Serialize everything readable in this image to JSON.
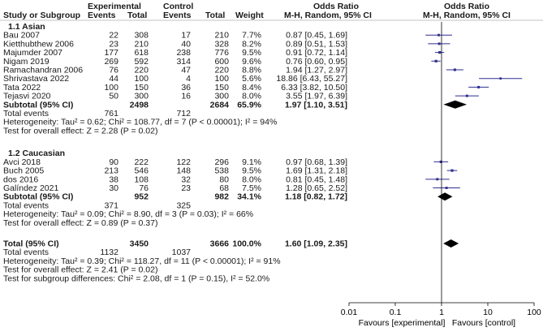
{
  "colors": {
    "text": "#1a1a1a",
    "study_marker": "#2e2f8f",
    "study_line": "#2e2f8f",
    "diamond": "#000000",
    "axis": "#000000",
    "line_of_no_effect": "#000000"
  },
  "header": {
    "study_col": "Study or Subgroup",
    "group1": "Experimental",
    "group2": "Control",
    "events": "Events",
    "total": "Total",
    "weight": "Weight",
    "or_title": "Odds Ratio",
    "or_method": "M-H, Random, 95% CI",
    "plot_title": "Odds Ratio",
    "plot_method": "M-H, Random, 95% CI"
  },
  "chart_data": {
    "type": "forest",
    "scale": "log",
    "xlim": [
      0.01,
      100
    ],
    "xticks": [
      "0.01",
      "0.1",
      "1",
      "10",
      "100"
    ],
    "xtick_values": [
      0.01,
      0.1,
      1,
      10,
      100
    ],
    "xlabel_left": "Favours [experimental]",
    "xlabel_right": "Favours [control]",
    "subgroups": [
      {
        "title": "1.1 Asian",
        "studies": [
          {
            "name": "Bau 2007",
            "e_events": "22",
            "e_total": "308",
            "c_events": "17",
            "c_total": "210",
            "weight": "7.7%",
            "ci_text": "0.87 [0.45, 1.69]",
            "or": 0.87,
            "lo": 0.45,
            "hi": 1.69
          },
          {
            "name": "Kietthubthew 2006",
            "e_events": "23",
            "e_total": "210",
            "c_events": "40",
            "c_total": "328",
            "weight": "8.2%",
            "ci_text": "0.89 [0.51, 1.53]",
            "or": 0.89,
            "lo": 0.51,
            "hi": 1.53
          },
          {
            "name": "Majumder 2007",
            "e_events": "177",
            "e_total": "618",
            "c_events": "238",
            "c_total": "776",
            "weight": "9.5%",
            "ci_text": "0.91 [0.72, 1.14]",
            "or": 0.91,
            "lo": 0.72,
            "hi": 1.14
          },
          {
            "name": "Nigam 2019",
            "e_events": "269",
            "e_total": "592",
            "c_events": "314",
            "c_total": "600",
            "weight": "9.6%",
            "ci_text": "0.76 [0.60, 0.95]",
            "or": 0.76,
            "lo": 0.6,
            "hi": 0.95
          },
          {
            "name": "Ramachandran 2006",
            "e_events": "76",
            "e_total": "220",
            "c_events": "47",
            "c_total": "220",
            "weight": "8.8%",
            "ci_text": "1.94 [1.27, 2.97]",
            "or": 1.94,
            "lo": 1.27,
            "hi": 2.97
          },
          {
            "name": "Shrivastava 2022",
            "e_events": "44",
            "e_total": "100",
            "c_events": "4",
            "c_total": "100",
            "weight": "5.6%",
            "ci_text": "18.86 [6.43, 55.27]",
            "or": 18.86,
            "lo": 6.43,
            "hi": 55.27
          },
          {
            "name": "Tata 2022",
            "e_events": "100",
            "e_total": "150",
            "c_events": "36",
            "c_total": "150",
            "weight": "8.4%",
            "ci_text": "6.33 [3.82, 10.50]",
            "or": 6.33,
            "lo": 3.82,
            "hi": 10.5
          },
          {
            "name": "Tejasvi 2020",
            "e_events": "50",
            "e_total": "300",
            "c_events": "16",
            "c_total": "300",
            "weight": "8.0%",
            "ci_text": "3.55 [1.97, 6.39]",
            "or": 3.55,
            "lo": 1.97,
            "hi": 6.39
          }
        ],
        "subtotal": {
          "label": "Subtotal (95% CI)",
          "e_total": "2498",
          "c_total": "2684",
          "weight": "65.9%",
          "ci_text": "1.97 [1.10, 3.51]",
          "or": 1.97,
          "lo": 1.1,
          "hi": 3.51
        },
        "total_events": {
          "label": "Total events",
          "e": "761",
          "c": "712"
        },
        "heterogeneity": "Heterogeneity: Tau² = 0.62; Chi² = 108.77, df = 7 (P < 0.00001); I² = 94%",
        "overall_effect": "Test for overall effect: Z = 2.28 (P = 0.02)"
      },
      {
        "title": "1.2 Caucasian",
        "studies": [
          {
            "name": "Avci 2018",
            "e_events": "90",
            "e_total": "222",
            "c_events": "122",
            "c_total": "296",
            "weight": "9.1%",
            "ci_text": "0.97 [0.68, 1.39]",
            "or": 0.97,
            "lo": 0.68,
            "hi": 1.39
          },
          {
            "name": "Buch 2005",
            "e_events": "213",
            "e_total": "546",
            "c_events": "148",
            "c_total": "538",
            "weight": "9.5%",
            "ci_text": "1.69 [1.31, 2.18]",
            "or": 1.69,
            "lo": 1.31,
            "hi": 2.18
          },
          {
            "name": "dos 2016",
            "e_events": "38",
            "e_total": "108",
            "c_events": "32",
            "c_total": "80",
            "weight": "8.0%",
            "ci_text": "0.81 [0.45, 1.48]",
            "or": 0.81,
            "lo": 0.45,
            "hi": 1.48
          },
          {
            "name": "Galíndez 2021",
            "e_events": "30",
            "e_total": "76",
            "c_events": "23",
            "c_total": "68",
            "weight": "7.5%",
            "ci_text": "1.28 [0.65, 2.52]",
            "or": 1.28,
            "lo": 0.65,
            "hi": 2.52
          }
        ],
        "subtotal": {
          "label": "Subtotal (95% CI)",
          "e_total": "952",
          "c_total": "982",
          "weight": "34.1%",
          "ci_text": "1.18 [0.82, 1.72]",
          "or": 1.18,
          "lo": 0.82,
          "hi": 1.72
        },
        "total_events": {
          "label": "Total events",
          "e": "371",
          "c": "325"
        },
        "heterogeneity": "Heterogeneity: Tau² = 0.09; Chi² = 8.90, df = 3 (P = 0.03); I² = 66%",
        "overall_effect": "Test for overall effect: Z = 0.89 (P = 0.37)"
      }
    ],
    "overall": {
      "label": "Total (95% CI)",
      "e_total": "3450",
      "c_total": "3666",
      "weight": "100.0%",
      "ci_text": "1.60 [1.09, 2.35]",
      "or": 1.6,
      "lo": 1.09,
      "hi": 2.35
    },
    "overall_events": {
      "label": "Total events",
      "e": "1132",
      "c": "1037"
    },
    "overall_heterogeneity": "Heterogeneity: Tau² = 0.39; Chi² = 118.27, df = 11 (P < 0.00001); I² = 91%",
    "overall_effect": "Test for overall effect: Z = 2.41 (P = 0.02)",
    "subgroup_differences": "Test for subgroup differences: Chi² = 2.08, df = 1 (P = 0.15), I² = 52.0%"
  }
}
